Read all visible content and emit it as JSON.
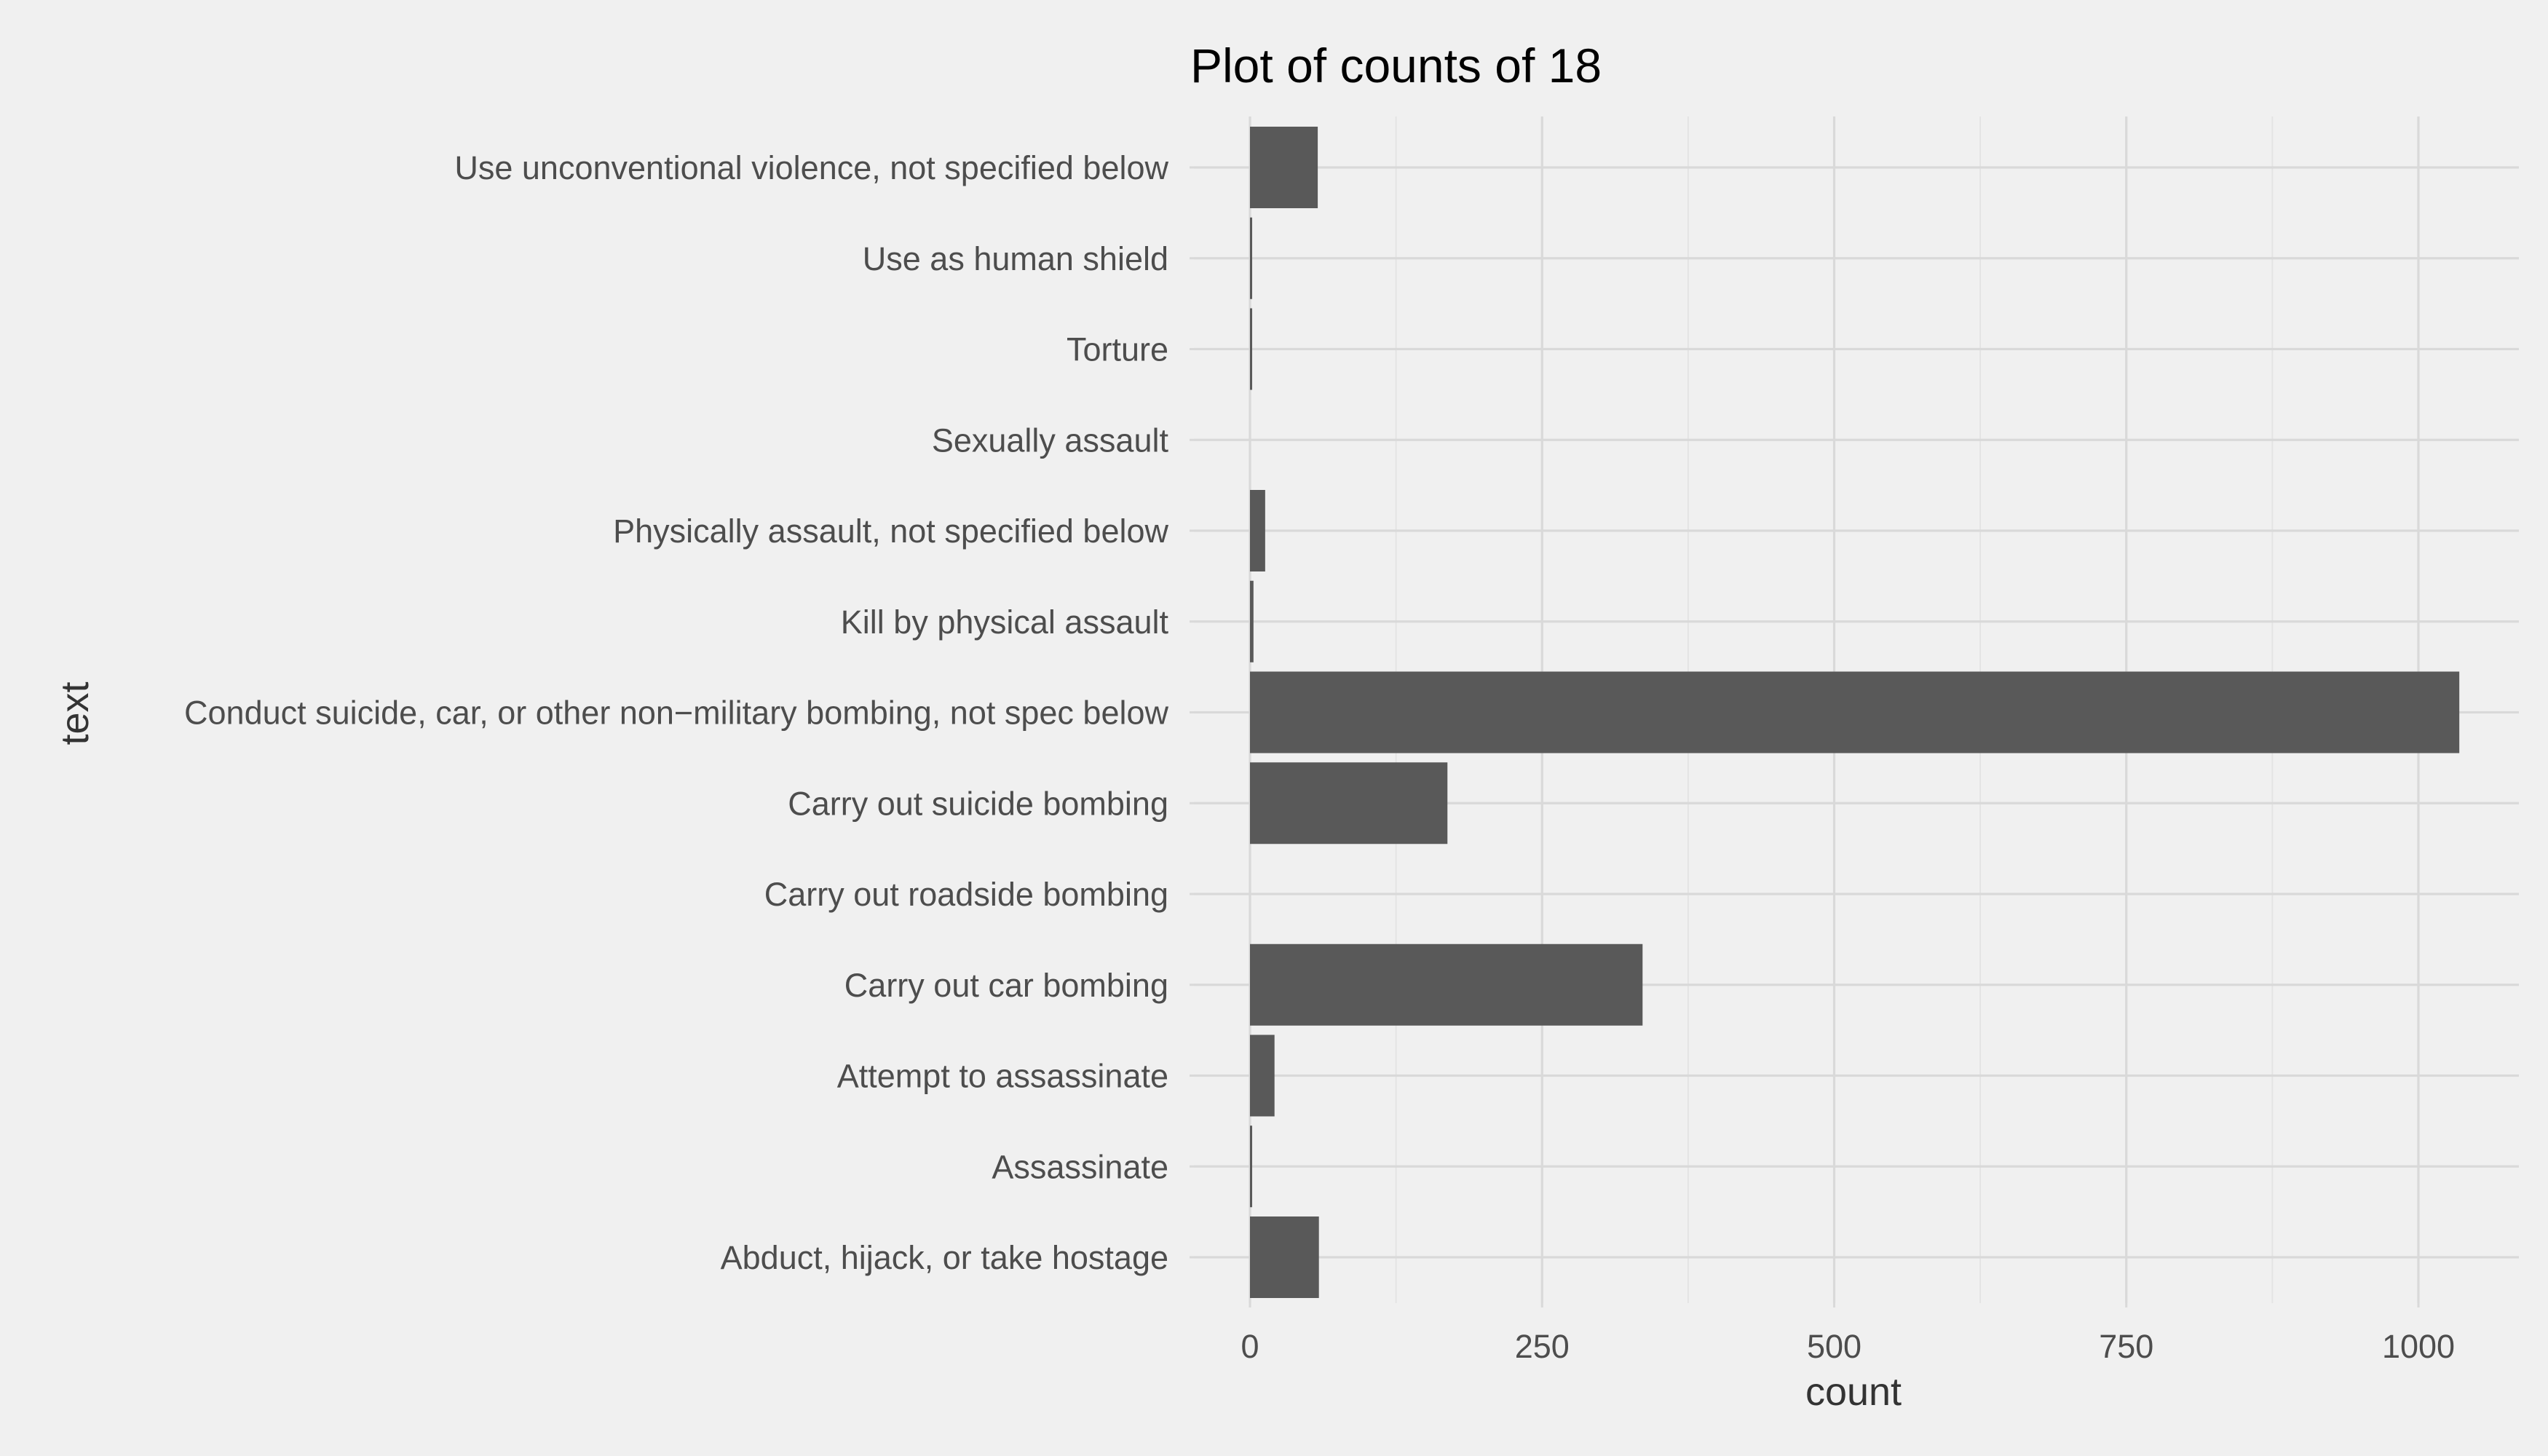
{
  "chart_data": {
    "type": "bar",
    "orientation": "horizontal",
    "title": "Plot of counts of 18",
    "xlabel": "count",
    "ylabel": "text",
    "xlim": [
      -50,
      1085
    ],
    "xticks": [
      0,
      250,
      500,
      750,
      1000
    ],
    "xtick_labels": [
      "0",
      "250",
      "500",
      "750",
      "1000"
    ],
    "grid": true,
    "legend": "none",
    "bar_color": "#595959",
    "background_color": "#f0f0f0",
    "categories": [
      "Use unconventional violence, not specified below",
      "Use as human shield ",
      "Torture",
      "Sexually assault",
      "Physically assault, not specified below",
      "Kill by physical assault",
      "Conduct suicide, car, or other non−military bombing, not spec below",
      "Carry out suicide bombing",
      "Carry out roadside bombing ",
      "Carry out car bombing",
      "Attempt to assassinate",
      "Assassinate ",
      "Abduct, hijack, or take hostage "
    ],
    "values": [
      58,
      1,
      1,
      0,
      13,
      3,
      1035,
      169,
      0,
      336,
      21,
      1,
      59
    ]
  }
}
